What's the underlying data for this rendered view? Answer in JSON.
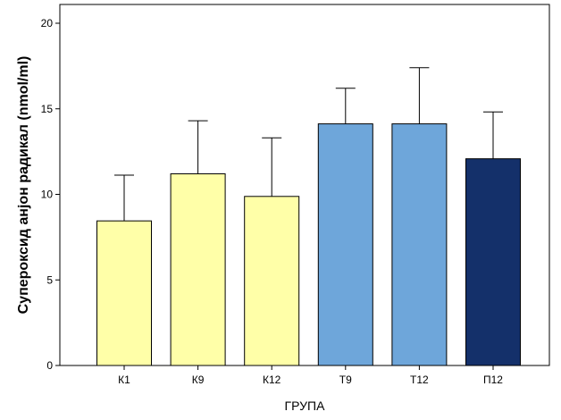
{
  "chart_data": {
    "type": "bar",
    "categories": [
      "К1",
      "К9",
      "К12",
      "Т9",
      "Т12",
      "П12"
    ],
    "values": [
      8.45,
      11.2,
      9.88,
      14.12,
      14.12,
      12.08
    ],
    "error_upper": [
      11.12,
      14.3,
      13.3,
      16.2,
      17.4,
      14.82
    ],
    "bar_colors": [
      "#ffffa8",
      "#ffffa8",
      "#ffffa8",
      "#6ea6da",
      "#6ea6da",
      "#14306a"
    ],
    "xlabel": "ГРУПА",
    "ylabel": "Супероксид анјон радикал (nmol/ml)",
    "ylim": [
      0,
      20
    ],
    "yticks": [
      0,
      5,
      10,
      15,
      20
    ],
    "ytick_labels": [
      "0",
      "5",
      "10",
      "15",
      "20"
    ],
    "grid": false,
    "legend": false
  }
}
